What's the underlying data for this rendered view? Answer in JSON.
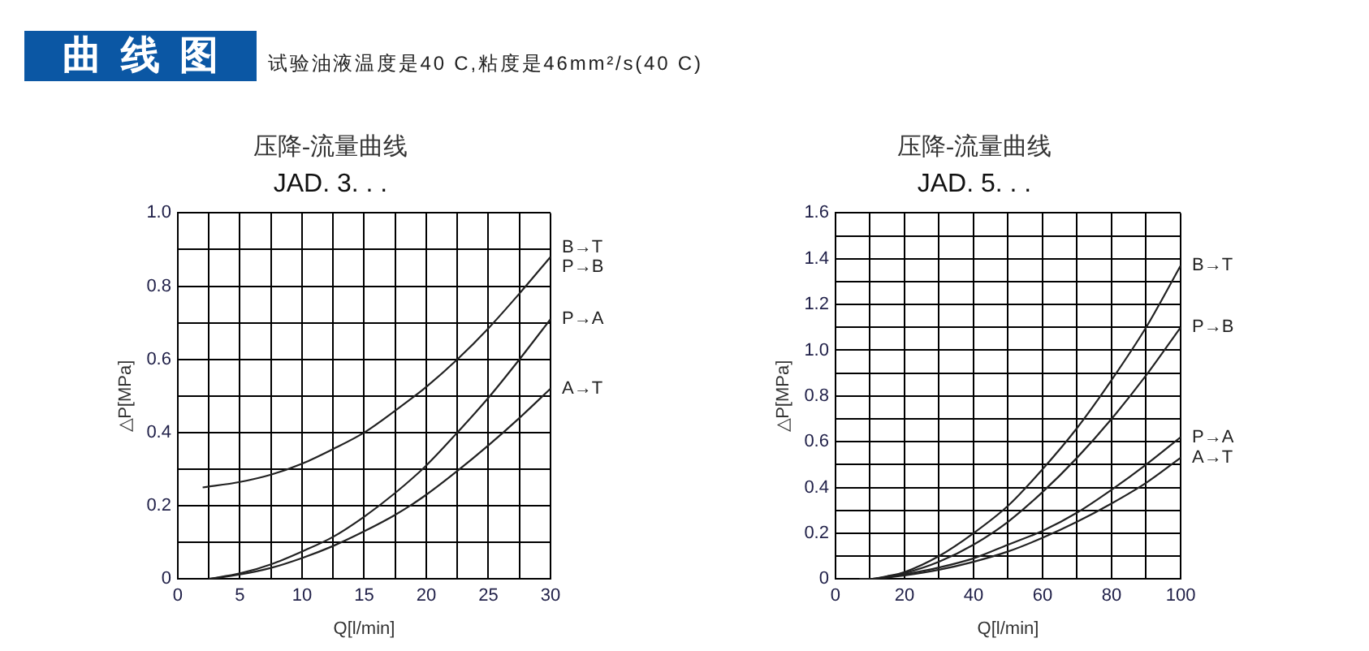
{
  "chart_data": [
    {
      "type": "line",
      "title": "压降-流量曲线",
      "subtitle": "JAD. 3. . .",
      "xlabel": "Q[l/min]",
      "ylabel": "△P[MPa]",
      "annotations": [
        "曲线图",
        "试验油液温度是40 C,粘度是46mm²/s(40 C)"
      ],
      "xlim": [
        0,
        30
      ],
      "ylim": [
        0,
        1.0
      ],
      "xticks": [
        0,
        {
          "value": 2.5,
          "label": null
        },
        5,
        {
          "value": 7.5,
          "label": null
        },
        10,
        {
          "value": 12.5,
          "label": null
        },
        15,
        {
          "value": 17.5,
          "label": null
        },
        20,
        {
          "value": 22.5,
          "label": null
        },
        25,
        {
          "value": 27.5,
          "label": null
        },
        30
      ],
      "yticks": [
        0,
        {
          "value": 0.1,
          "label": null
        },
        0.2,
        {
          "value": 0.3,
          "label": null
        },
        0.4,
        {
          "value": 0.5,
          "label": null
        },
        0.6,
        {
          "value": 0.7,
          "label": null
        },
        0.8,
        {
          "value": 0.9,
          "label": null
        },
        {
          "value": 1.0,
          "label": "1.0"
        }
      ],
      "grid": true,
      "series": [
        {
          "name": "B→T\nP→B",
          "color": "#222222",
          "x": [
            2,
            5,
            7.5,
            10,
            12.5,
            15,
            17.5,
            20,
            22.5,
            25,
            27.5,
            30
          ],
          "values": [
            0.25,
            0.265,
            0.285,
            0.315,
            0.355,
            0.4,
            0.46,
            0.525,
            0.6,
            0.685,
            0.78,
            0.88
          ]
        },
        {
          "name": "P→A",
          "color": "#222222",
          "x": [
            2.5,
            5,
            7.5,
            10,
            12.5,
            15,
            17.5,
            20,
            22.5,
            25,
            27.5,
            30
          ],
          "values": [
            0,
            0.015,
            0.04,
            0.075,
            0.115,
            0.17,
            0.235,
            0.31,
            0.4,
            0.495,
            0.6,
            0.71
          ]
        },
        {
          "name": "A→T",
          "color": "#222222",
          "x": [
            2.5,
            5,
            7.5,
            10,
            12.5,
            15,
            17.5,
            20,
            22.5,
            25,
            27.5,
            30
          ],
          "values": [
            0,
            0.012,
            0.03,
            0.057,
            0.09,
            0.13,
            0.175,
            0.23,
            0.295,
            0.365,
            0.44,
            0.52
          ]
        }
      ]
    },
    {
      "type": "line",
      "title": "压降-流量曲线",
      "subtitle": "JAD. 5. . .",
      "xlabel": "Q[l/min]",
      "ylabel": "△P[MPa]",
      "xlim": [
        0,
        100
      ],
      "ylim": [
        0,
        1.6
      ],
      "xticks": [
        0,
        {
          "value": 10,
          "label": null
        },
        20,
        {
          "value": 30,
          "label": null
        },
        40,
        {
          "value": 50,
          "label": null
        },
        60,
        {
          "value": 70,
          "label": null
        },
        80,
        {
          "value": 90,
          "label": null
        },
        100
      ],
      "yticks": [
        0,
        {
          "value": 0.1,
          "label": null
        },
        0.2,
        {
          "value": 0.3,
          "label": null
        },
        0.4,
        {
          "value": 0.5,
          "label": null
        },
        0.6,
        {
          "value": 0.7,
          "label": null
        },
        0.8,
        {
          "value": 0.9,
          "label": null
        },
        {
          "value": 1.0,
          "label": "1.0"
        },
        {
          "value": 1.1,
          "label": null
        },
        1.2,
        {
          "value": 1.3,
          "label": null
        },
        1.4,
        {
          "value": 1.5,
          "label": null
        },
        1.6
      ],
      "grid": true,
      "x": [
        7,
        10,
        15,
        20,
        30,
        40,
        50,
        60,
        70,
        80,
        90,
        100
      ],
      "series": [
        {
          "name": "B→T",
          "color": "#222222",
          "values": [
            0,
            0,
            0.012,
            0.03,
            0.1,
            0.2,
            0.32,
            0.48,
            0.66,
            0.87,
            1.1,
            1.37
          ]
        },
        {
          "name": "P→B",
          "color": "#222222",
          "values": [
            0,
            0,
            0.01,
            0.025,
            0.075,
            0.15,
            0.25,
            0.38,
            0.53,
            0.7,
            0.89,
            1.1
          ]
        },
        {
          "name": "P→A",
          "color": "#222222",
          "values": [
            0,
            0,
            0.008,
            0.02,
            0.05,
            0.09,
            0.15,
            0.21,
            0.29,
            0.39,
            0.5,
            0.62
          ]
        },
        {
          "name": "A→T",
          "color": "#222222",
          "values": [
            0,
            0,
            0.006,
            0.015,
            0.04,
            0.075,
            0.12,
            0.18,
            0.25,
            0.33,
            0.42,
            0.53
          ]
        }
      ]
    }
  ]
}
